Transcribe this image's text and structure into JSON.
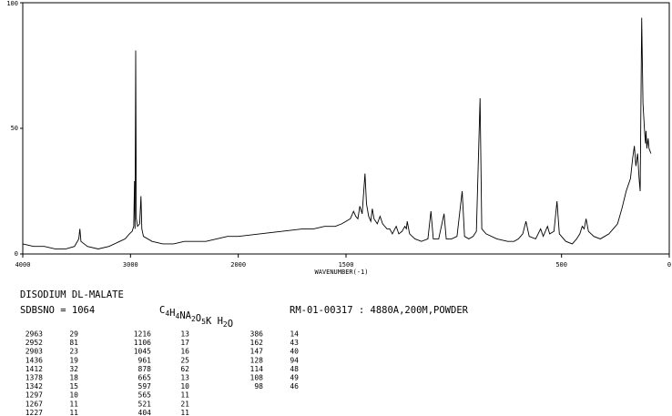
{
  "chart_data": {
    "type": "line",
    "x_label": "WAVENUMBER(-1)",
    "xlim": [
      4000,
      0
    ],
    "x_break": 2000,
    "xticks": [
      4000,
      3000,
      2000,
      1500,
      500,
      0
    ],
    "ylim": [
      0,
      100
    ],
    "yticks": [
      0,
      50,
      100
    ],
    "color": "#000000",
    "x": [
      4000,
      3900,
      3800,
      3700,
      3600,
      3520,
      3480,
      3470,
      3460,
      3400,
      3300,
      3200,
      3100,
      3050,
      3010,
      2985,
      2970,
      2963,
      2958,
      2952,
      2946,
      2935,
      2915,
      2903,
      2895,
      2880,
      2800,
      2700,
      2600,
      2500,
      2400,
      2300,
      2200,
      2100,
      2000,
      1900,
      1800,
      1700,
      1650,
      1600,
      1550,
      1520,
      1500,
      1480,
      1465,
      1455,
      1445,
      1436,
      1425,
      1412,
      1405,
      1395,
      1385,
      1378,
      1370,
      1355,
      1342,
      1330,
      1310,
      1297,
      1285,
      1267,
      1255,
      1240,
      1227,
      1220,
      1216,
      1205,
      1180,
      1150,
      1120,
      1106,
      1095,
      1070,
      1045,
      1035,
      1010,
      985,
      961,
      950,
      930,
      910,
      895,
      878,
      870,
      850,
      800,
      750,
      720,
      700,
      680,
      665,
      650,
      620,
      597,
      585,
      565,
      555,
      535,
      521,
      510,
      480,
      450,
      430,
      415,
      404,
      395,
      386,
      375,
      350,
      320,
      300,
      280,
      260,
      240,
      220,
      200,
      180,
      170,
      162,
      155,
      147,
      140,
      135,
      128,
      122,
      114,
      110,
      108,
      104,
      98,
      94,
      85
    ],
    "values": [
      4,
      3,
      3,
      2,
      2,
      3,
      6,
      10,
      5,
      3,
      2,
      3,
      5,
      6,
      8,
      9,
      11,
      29,
      10,
      81,
      14,
      11,
      12,
      23,
      10,
      7,
      5,
      4,
      4,
      5,
      5,
      5,
      6,
      7,
      7,
      8,
      9,
      10,
      10,
      11,
      11,
      12,
      13,
      14,
      17,
      15,
      14,
      19,
      16,
      32,
      20,
      15,
      13,
      18,
      14,
      12,
      15,
      12,
      10,
      10,
      8,
      11,
      8,
      9,
      11,
      10,
      13,
      8,
      6,
      5,
      6,
      17,
      6,
      6,
      16,
      6,
      6,
      7,
      25,
      7,
      6,
      7,
      9,
      62,
      10,
      8,
      6,
      5,
      5,
      6,
      8,
      13,
      7,
      6,
      10,
      7,
      11,
      8,
      9,
      21,
      8,
      5,
      4,
      6,
      8,
      11,
      10,
      14,
      9,
      7,
      6,
      7,
      8,
      10,
      12,
      18,
      25,
      30,
      38,
      43,
      35,
      40,
      30,
      25,
      94,
      60,
      48,
      44,
      49,
      42,
      46,
      42,
      40
    ]
  },
  "compound": "DISODIUM DL-MALATE",
  "sdbs_no": "SDBSNO = 1064",
  "formula": "C4H4NA2O5K H2O",
  "conditions": "RM-01-00317 : 4880A,200M,POWDER",
  "peak_table": [
    [
      [
        2963,
        29
      ],
      [
        2952,
        81
      ],
      [
        2903,
        23
      ],
      [
        1436,
        19
      ],
      [
        1412,
        32
      ],
      [
        1378,
        18
      ],
      [
        1342,
        15
      ],
      [
        1297,
        10
      ],
      [
        1267,
        11
      ],
      [
        1227,
        11
      ]
    ],
    [
      [
        1216,
        13
      ],
      [
        1106,
        17
      ],
      [
        1045,
        16
      ],
      [
        961,
        25
      ],
      [
        878,
        62
      ],
      [
        665,
        13
      ],
      [
        597,
        10
      ],
      [
        565,
        11
      ],
      [
        521,
        21
      ],
      [
        404,
        11
      ]
    ],
    [
      [
        386,
        14
      ],
      [
        162,
        43
      ],
      [
        147,
        40
      ],
      [
        128,
        94
      ],
      [
        114,
        48
      ],
      [
        108,
        49
      ],
      [
        98,
        46
      ]
    ]
  ]
}
